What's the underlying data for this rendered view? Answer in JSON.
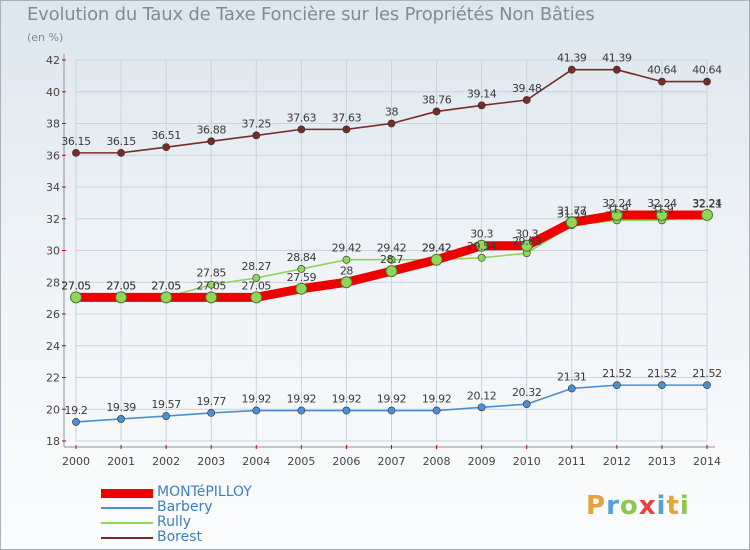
{
  "chart_data": {
    "type": "line",
    "title": "Evolution du Taux de Taxe Foncière sur les Propriétés Non Bâties",
    "subtitle": "(en %)",
    "xlabel": "",
    "ylabel": "",
    "ylim": [
      18,
      42
    ],
    "yticks": [
      "18",
      "20",
      "22",
      "24",
      "26",
      "28",
      "30",
      "32",
      "34",
      "36",
      "38",
      "40",
      "42"
    ],
    "categories": [
      "2000",
      "2001",
      "2002",
      "2003",
      "2004",
      "2005",
      "2006",
      "2007",
      "2008",
      "2009",
      "2010",
      "2011",
      "2012",
      "2013",
      "2014"
    ],
    "series": [
      {
        "name": "Borest",
        "color": "#7a2a2a",
        "values": [
          36.15,
          36.15,
          36.51,
          36.88,
          37.25,
          37.63,
          37.63,
          38,
          38.76,
          39.14,
          39.48,
          41.39,
          41.39,
          40.64,
          40.64
        ],
        "labels": [
          "36.15",
          "36.15",
          "36.51",
          "36.88",
          "37.25",
          "37.63",
          "37.63",
          "38",
          "38.76",
          "39.14",
          "39.48",
          "41.39",
          "41.39",
          "40.64",
          "40.64"
        ]
      },
      {
        "name": "Barbery",
        "color": "#4a90d0",
        "values": [
          19.2,
          19.39,
          19.57,
          19.77,
          19.92,
          19.92,
          19.92,
          19.92,
          19.92,
          20.12,
          20.32,
          21.31,
          21.52,
          21.52,
          21.52
        ],
        "labels": [
          "19.2",
          "19.39",
          "19.57",
          "19.77",
          "19.92",
          "19.92",
          "19.92",
          "19.92",
          "19.92",
          "20.12",
          "20.32",
          "21.31",
          "21.52",
          "21.52",
          "21.52"
        ]
      },
      {
        "name": "Rully",
        "color": "#8fd65a",
        "values": [
          27.05,
          27.05,
          27.05,
          27.85,
          28.27,
          28.84,
          29.42,
          29.42,
          29.42,
          29.54,
          29.83,
          31.59,
          31.9,
          31.9,
          32.21
        ],
        "labels": [
          "27.05",
          "27.05",
          "27.05",
          "27.85",
          "28.27",
          "28.84",
          "29.42",
          "29.42",
          "29.42",
          "29.54",
          "29.83",
          "31.59",
          "31.9",
          "31.9",
          "32.21"
        ]
      },
      {
        "name": "MONTéPILLOY",
        "color": "#ee0000",
        "values": [
          27.05,
          27.05,
          27.05,
          27.05,
          27.05,
          27.59,
          28,
          28.7,
          29.42,
          30.3,
          30.3,
          31.77,
          32.24,
          32.24,
          32.24
        ],
        "labels": [
          "27.05",
          "27.05",
          "27.05",
          "27.05",
          "27.05",
          "27.59",
          "28",
          "28.7",
          "29.42",
          "30.3",
          "30.3",
          "31.77",
          "32.24",
          "32.24",
          "32.24"
        ]
      }
    ],
    "legend": [
      "MONTéPILLOY",
      "Barbery",
      "Rully",
      "Borest"
    ],
    "legend_position": "bottom-left"
  },
  "brand": {
    "letters": [
      "P",
      "r",
      "o",
      "x",
      "i",
      "t",
      "i"
    ],
    "colors": [
      "#e8a23a",
      "#5aa0d8",
      "#8cc84b",
      "#e84040",
      "#5aa0d8",
      "#e8a23a",
      "#8cc84b"
    ]
  }
}
